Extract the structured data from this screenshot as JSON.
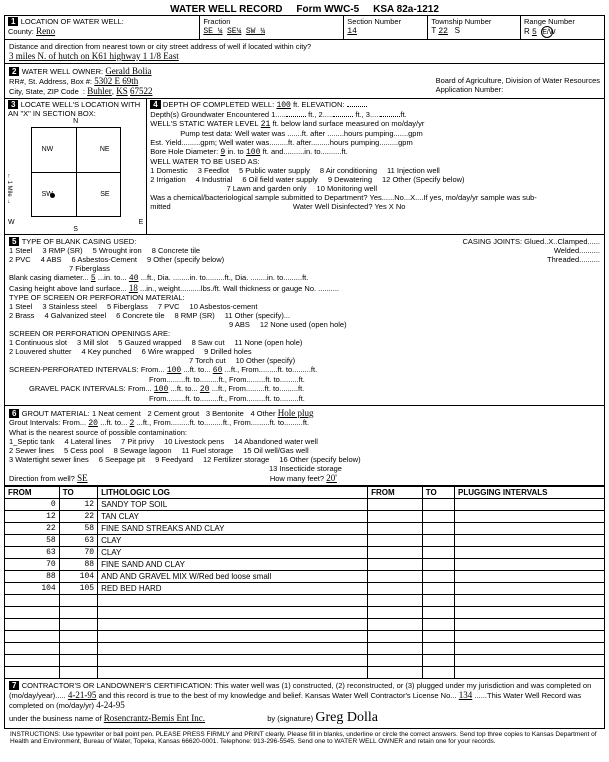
{
  "header": {
    "title": "WATER WELL RECORD",
    "form": "Form WWC-5",
    "ksa": "KSA 82a-1212"
  },
  "sec1": {
    "county": "Reno",
    "fraction": [
      "SE ¼",
      "SE¼",
      "SW ¼"
    ],
    "section_no": "14",
    "township_no": "22",
    "township_dir": "S",
    "range_no": "5",
    "range_dir": "E/W",
    "distance": "3 miles N. of hutch on K61 highway 1 1/8 East"
  },
  "sec2": {
    "owner": "Gerald Bolia",
    "address": "5302 E 69th",
    "city": "Buhler",
    "state": "KS",
    "zip": "67522",
    "board": "Board of Agriculture, Division of Water Resources",
    "app_no_label": "Application Number:"
  },
  "sec4": {
    "depth_completed": "100",
    "gw_encountered": "1",
    "ft2": "",
    "ft3": "",
    "static_level": "21",
    "pump_test": "Well water was",
    "well_water_units": "ft. after",
    "hours_pumping": "hours pumping",
    "gpm": "gpm",
    "bore_dia_from": "9",
    "bore_dia_to": "100",
    "uses": [
      "1 Domestic",
      "2 Irrigation",
      "3 Feedlot",
      "4 Industrial",
      "5 Public water supply",
      "6 Oil field water supply",
      "7 Lawn and garden only",
      "8 Air conditioning",
      "9 Dewatering",
      "10 Monitoring well",
      "11 Injection well",
      "12 Other (Specify below)"
    ],
    "chem_q": "Was a chemical/bacteriological sample submitted to Department? Yes......No...X....If yes, mo/day/yr sample was sub-",
    "disinfected": "Water Well Disinfected? Yes  X   No"
  },
  "sec5": {
    "blank_casing": [
      "1 Steel",
      "2 PVC",
      "3 RMP (SR)",
      "4 ABS",
      "5 Wrought iron",
      "6 Asbestos-Cement",
      "7 Fiberglass",
      "8 Concrete tile",
      "9 Other (specify below)"
    ],
    "casing_joints": "CASING JOINTS: Glued..X..Clamped......",
    "joints2": "Welded.........  Threaded.........",
    "blank_dia": "5",
    "blank_to": "40",
    "ft_dia": "ft., Dia.",
    "in_to": "in. to",
    "casing_height": "18",
    "screen_mat": [
      "1 Steel",
      "2 Brass",
      "3 Stainless steel",
      "4 Galvanized steel",
      "5 Fiberglass",
      "6 Concrete tile",
      "7 PVC",
      "8 RMP (SR)",
      "9 ABS",
      "10 Asbestos-cement",
      "11 Other (specify)...",
      "12 None used (open hole)"
    ],
    "openings": [
      "1 Continuous slot",
      "2 Louvered shutter",
      "3 Mill slot",
      "4 Key punched",
      "5 Gauzed wrapped",
      "6 Wire wrapped",
      "7 Torch cut",
      "8 Saw cut",
      "9 Drilled holes",
      "10 Other (specify)",
      "11 None (open hole)"
    ],
    "screen_from": "100",
    "screen_to": "60",
    "gravel_from": "100",
    "gravel_to": "20"
  },
  "sec6": {
    "materials": [
      "1 Neat cement",
      "2 Cement grout",
      "3 Bentonite",
      "4 Other"
    ],
    "other_val": "Hole plug",
    "grout_from": "20",
    "grout_to": "2",
    "contam_q": "What is the nearest source of possible contamination:",
    "contam": [
      "1_Septic tank",
      "2 Sewer lines",
      "3 Watertight sewer lines",
      "4 Lateral lines",
      "5 Cess pool",
      "6 Seepage pit",
      "7 Pit privy",
      "8 Sewage lagoon",
      "9 Feedyard",
      "10 Livestock pens",
      "11 Fuel storage",
      "12 Fertilizer storage",
      "13 Insecticide storage",
      "14 Abandoned water well",
      "15 Oil well/Gas well",
      "16 Other (specify below)"
    ],
    "direction": "SE",
    "how_many_feet": "20'"
  },
  "log": {
    "cols": [
      "FROM",
      "TO",
      "LITHOLOGIC LOG",
      "FROM",
      "TO",
      "PLUGGING INTERVALS"
    ],
    "rows": [
      [
        "0",
        "12",
        "SANDY TOP SOIL",
        "",
        "",
        ""
      ],
      [
        "12",
        "22",
        "TAN CLAY",
        "",
        "",
        ""
      ],
      [
        "22",
        "58",
        "FINE SAND STREAKS AND CLAY",
        "",
        "",
        ""
      ],
      [
        "58",
        "63",
        "CLAY",
        "",
        "",
        ""
      ],
      [
        "63",
        "70",
        "CLAY",
        "",
        "",
        ""
      ],
      [
        "70",
        "88",
        "FINE SAND AND CLAY",
        "",
        "",
        ""
      ],
      [
        "88",
        "104",
        "AND AND GRAVEL MIX W/Red bed loose small",
        "",
        "",
        ""
      ],
      [
        "104",
        "105",
        "RED BED HARD",
        "",
        "",
        ""
      ]
    ],
    "blank_rows": 7
  },
  "sec7": {
    "text": "CONTRACTOR'S OR LANDOWNER'S CERTIFICATION: This water well was (1) constructed, (2) reconstructed, or (3) plugged under my jurisdiction and was completed on (mo/day/year).....",
    "completed": "4-21-95",
    "text2": "and this record is true to the best of my knowledge and belief. Kansas Water Well Contractor's License No...",
    "license": "134",
    "text3": "......This Water Well Record was completed on (mo/day/yr)",
    "record_date": "4-24-95",
    "business": "Rosencrantz-Bemis Ent Inc.",
    "by_sig": "by (signature)",
    "signature": "Greg Dolla"
  },
  "footer": "INSTRUCTIONS: Use typewriter or ball point pen. PLEASE PRESS FIRMLY and PRINT clearly. Please fill in blanks, underline or circle the correct answers. Send top three copies to Kansas Department of Health and Environment, Bureau of Water, Topeka, Kansas 66620-0001. Telephone: 913-296-5545. Send one to WATER WELL OWNER and retain one for your records."
}
